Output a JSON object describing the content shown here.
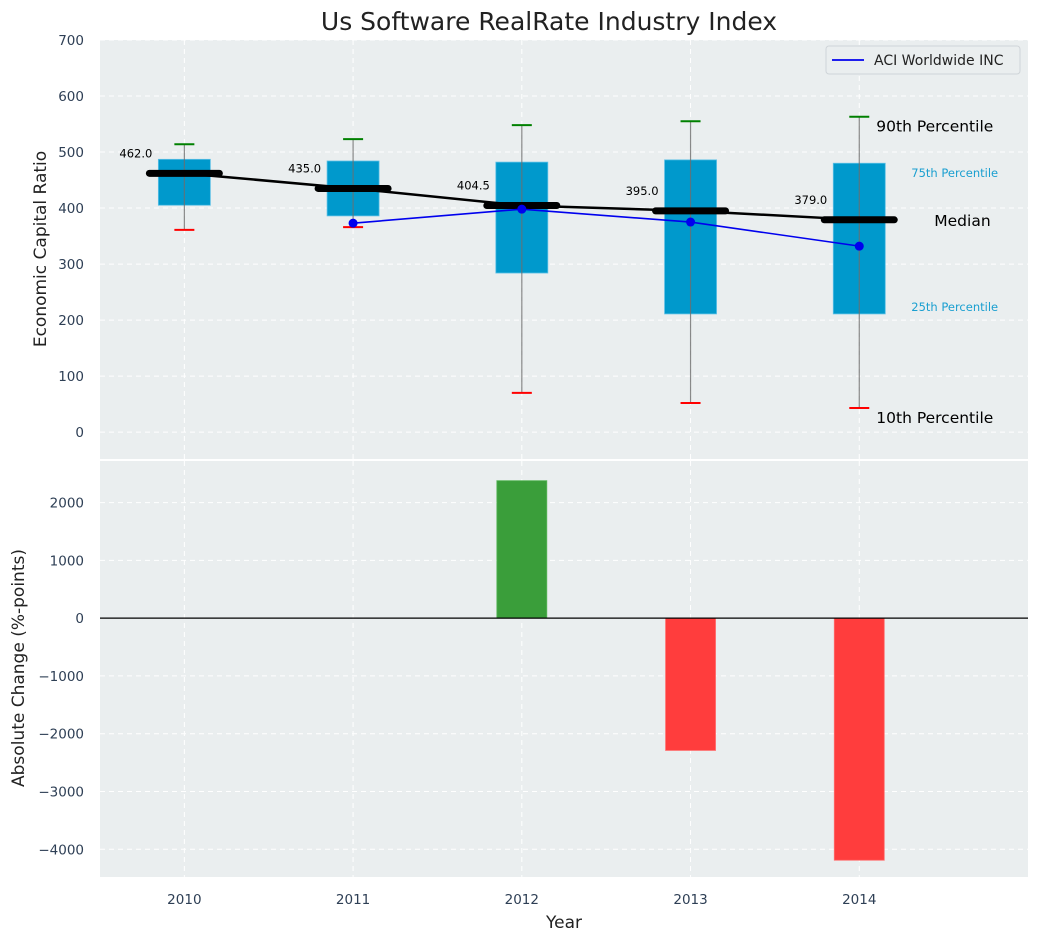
{
  "chart_data": [
    {
      "type": "box",
      "title": "Us Software RealRate Industry Index",
      "xlabel": "",
      "ylabel": "Economic Capital Ratio",
      "categories": [
        "2010",
        "2011",
        "2012",
        "2013",
        "2014"
      ],
      "xlim": [
        2009.5,
        2015.0
      ],
      "ylim": [
        -48,
        700
      ],
      "yticks": [
        0,
        100,
        200,
        300,
        400,
        500,
        600,
        700
      ],
      "grid": true,
      "boxes": [
        {
          "year": 2010,
          "p10": 361,
          "p25": 405,
          "median": 462.0,
          "p75": 487,
          "p90": 514
        },
        {
          "year": 2011,
          "p10": 366,
          "p25": 386,
          "median": 435.0,
          "p75": 484,
          "p90": 523
        },
        {
          "year": 2012,
          "p10": 70,
          "p25": 284,
          "median": 404.5,
          "p75": 482,
          "p90": 548
        },
        {
          "year": 2013,
          "p10": 52,
          "p25": 211,
          "median": 395.0,
          "p75": 486,
          "p90": 555
        },
        {
          "year": 2014,
          "p10": 43,
          "p25": 211,
          "median": 379.0,
          "p75": 480,
          "p90": 563
        }
      ],
      "median_labels": [
        "462.0",
        "435.0",
        "404.5",
        "395.0",
        "379.0"
      ],
      "series": [
        {
          "name": "ACI Worldwide INC",
          "color": "#0000ee",
          "x": [
            2011,
            2012,
            2013,
            2014
          ],
          "values": [
            373,
            398,
            375,
            332
          ]
        }
      ],
      "legend": {
        "position": "top-right",
        "entries": [
          "ACI Worldwide INC"
        ]
      },
      "annotations": {
        "p90": "90th Percentile",
        "p75": "75th Percentile",
        "median": "Median",
        "p25": "25th Percentile",
        "p10": "10th Percentile"
      },
      "colors": {
        "box": "#0099cc",
        "median": "#000000",
        "whisker_top": "#008000",
        "whisker_bottom": "#ff0000",
        "background": "#eaeeef"
      }
    },
    {
      "type": "bar",
      "title": "",
      "xlabel": "Year",
      "ylabel": "Absolute Change (%-points)",
      "categories": [
        "2010",
        "2011",
        "2012",
        "2013",
        "2014"
      ],
      "x": [
        2012,
        2013,
        2014
      ],
      "values": [
        2380,
        -2290,
        -4190
      ],
      "xlim": [
        2009.5,
        2015.0
      ],
      "ylim": [
        -4480,
        2720
      ],
      "yticks": [
        -4000,
        -3000,
        -2000,
        -1000,
        0,
        1000,
        2000
      ],
      "ytick_labels": [
        "−4000",
        "−3000",
        "−2000",
        "−1000",
        "0",
        "1000",
        "2000"
      ],
      "grid": true,
      "colors": {
        "positive": "#3a9e3a",
        "negative": "#ff3d3d"
      }
    }
  ]
}
